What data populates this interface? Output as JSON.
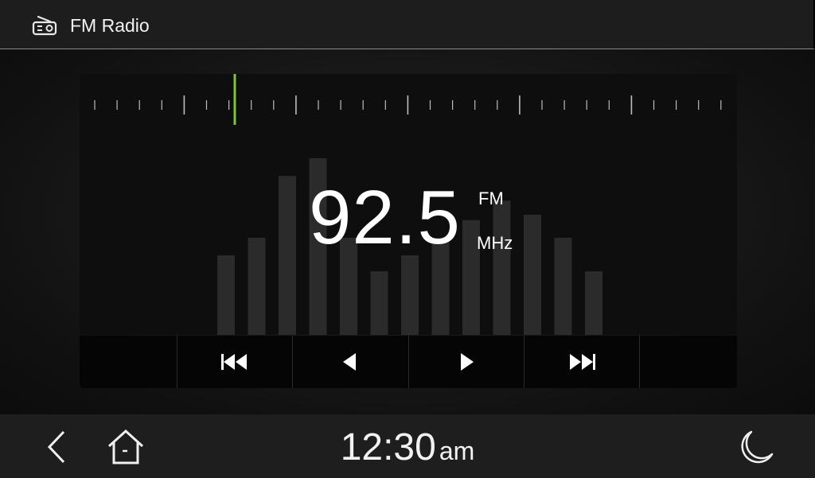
{
  "header": {
    "title": "FM Radio",
    "icon": "radio-icon"
  },
  "tuner": {
    "frequency": "92.5",
    "band": "FM",
    "unit": "MHz",
    "accent_color": "#7dc242",
    "signal_levels": [
      0.45,
      0.55,
      0.9,
      1.0,
      0.55,
      0.36,
      0.45,
      0.55,
      0.65,
      0.76,
      0.68,
      0.55,
      0.36
    ]
  },
  "controls": [
    {
      "name": "empty-left"
    },
    {
      "name": "seek-back-button",
      "icon": "skip-previous-icon"
    },
    {
      "name": "step-back-button",
      "icon": "step-left-icon"
    },
    {
      "name": "step-forward-button",
      "icon": "step-right-icon"
    },
    {
      "name": "seek-forward-button",
      "icon": "skip-next-icon"
    },
    {
      "name": "empty-right"
    }
  ],
  "footer": {
    "time": "12:30",
    "ampm": "am",
    "icons": [
      "back-icon",
      "home-icon",
      "night-mode-icon"
    ]
  }
}
